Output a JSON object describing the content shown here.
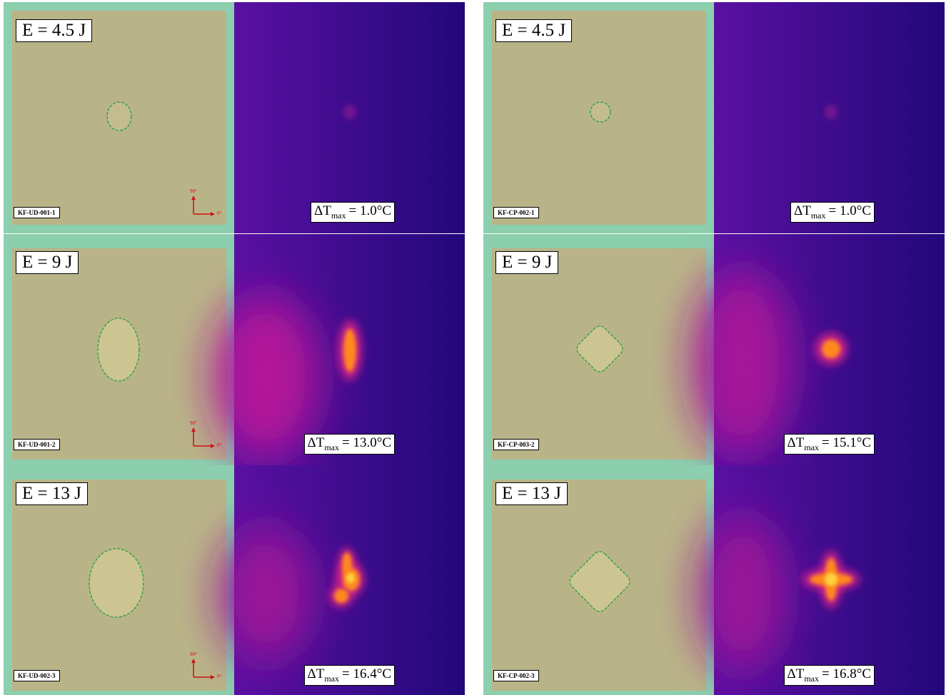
{
  "groups": [
    {
      "panels": [
        {
          "energy": "E = 4.5 J",
          "specimen": "KF-UD-001-1",
          "axis_labels": [
            "90°",
            "0°"
          ],
          "delta_t": {
            "symbol": "ΔT",
            "subscript": "max",
            "text": "= 1.0°C"
          }
        },
        {
          "energy": "E = 9 J",
          "specimen": "KF-UD-001-2",
          "axis_labels": [
            "90°",
            "0°"
          ],
          "delta_t": {
            "symbol": "ΔT",
            "subscript": "max",
            "text": "= 13.0°C"
          }
        },
        {
          "energy": "E = 13 J",
          "specimen": "KF-UD-002-3",
          "axis_labels": [
            "90°",
            "0°"
          ],
          "delta_t": {
            "symbol": "ΔT",
            "subscript": "max",
            "text": "= 16.4°C"
          }
        }
      ]
    },
    {
      "panels": [
        {
          "energy": "E = 4.5 J",
          "specimen": "KF-CP-002-1",
          "delta_t": {
            "symbol": "ΔT",
            "subscript": "max",
            "text": "= 1.0°C"
          }
        },
        {
          "energy": "E = 9 J",
          "specimen": "KF-CP-003-2",
          "delta_t": {
            "symbol": "ΔT",
            "subscript": "max",
            "text": "= 15.1°C"
          }
        },
        {
          "energy": "E = 13 J",
          "specimen": "KF-CP-002-3",
          "delta_t": {
            "symbol": "ΔT",
            "subscript": "max",
            "text": "= 16.8°C"
          }
        }
      ]
    }
  ]
}
